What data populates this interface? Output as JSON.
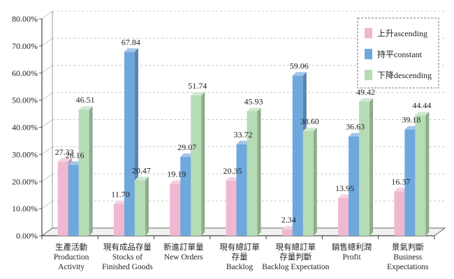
{
  "chart_data": {
    "type": "bar",
    "title": "",
    "xlabel": "",
    "ylabel": "",
    "ylim": [
      0,
      80
    ],
    "y_ticks": [
      "0.00%",
      "10.00%",
      "20.00%",
      "30.00%",
      "40.00%",
      "50.00%",
      "60.00%",
      "70.00%",
      "80.00%"
    ],
    "grid": true,
    "legend_position": "top-right",
    "categories": [
      [
        "生產活動",
        "Production",
        "Activity"
      ],
      [
        "現有成品存量",
        "Stocks of",
        "Finished Goods"
      ],
      [
        "新進訂單量",
        "New Orders"
      ],
      [
        "現有總訂單",
        "存量",
        "Backlog"
      ],
      [
        "現有總訂單",
        "存量判斷",
        "Backlog Expectation"
      ],
      [
        "銷售總利潤",
        "Profit"
      ],
      [
        "景氣判斷",
        "Business",
        "Expectations"
      ]
    ],
    "series": [
      {
        "name": "上升ascending",
        "color": "#f0b8d0",
        "values": [
          27.33,
          11.7,
          19.19,
          20.35,
          2.34,
          13.95,
          16.37
        ],
        "labels": [
          "27.33",
          "11.70",
          "19.19",
          "20.35",
          "2.34",
          "13.95",
          "16.37"
        ]
      },
      {
        "name": "持平constant",
        "color": "#6fa8dc",
        "values": [
          26.16,
          67.84,
          29.07,
          33.72,
          59.06,
          36.63,
          39.18
        ],
        "labels": [
          "26.16",
          "67.84",
          "29.07",
          "33.72",
          "59.06",
          "36.63",
          "39.18"
        ]
      },
      {
        "name": "下降descending",
        "color": "#b6dcb6",
        "values": [
          46.51,
          20.47,
          51.74,
          45.93,
          38.6,
          49.42,
          44.44
        ],
        "labels": [
          "46.51",
          "20.47",
          "51.74",
          "45.93",
          "38.60",
          "49.42",
          "44.44"
        ]
      }
    ]
  }
}
